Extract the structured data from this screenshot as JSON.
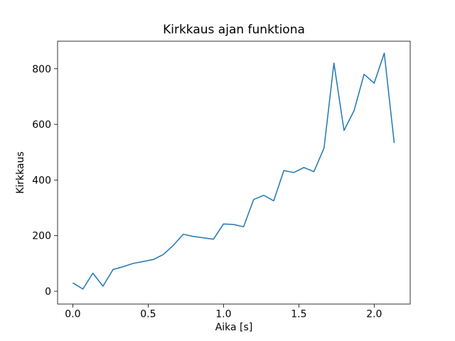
{
  "chart_data": {
    "type": "line",
    "title": "Kirkkaus ajan funktiona",
    "xlabel": "Aika [s]",
    "ylabel": "Kirkkaus",
    "line_color": "#1f77b4",
    "axis_color": "#000000",
    "background_color": "#ffffff",
    "grid": false,
    "legend": "none",
    "xlim": [
      -0.101,
      2.239
    ],
    "ylim": [
      -46,
      899
    ],
    "xticks": {
      "values": [
        0.0,
        0.5,
        1.0,
        1.5,
        2.0
      ],
      "labels": [
        "0.0",
        "0.5",
        "1.0",
        "1.5",
        "2.0"
      ]
    },
    "yticks": {
      "values": [
        0,
        200,
        400,
        600,
        800
      ],
      "labels": [
        "0",
        "200",
        "400",
        "600",
        "800"
      ]
    },
    "x": [
      0.0,
      0.067,
      0.133,
      0.2,
      0.267,
      0.333,
      0.4,
      0.467,
      0.533,
      0.6,
      0.667,
      0.733,
      0.8,
      0.867,
      0.933,
      1.0,
      1.067,
      1.133,
      1.2,
      1.267,
      1.333,
      1.4,
      1.467,
      1.533,
      1.6,
      1.667,
      1.733,
      1.8,
      1.867,
      1.933,
      2.0,
      2.067,
      2.133
    ],
    "y": [
      30,
      8,
      65,
      18,
      78,
      88,
      100,
      107,
      114,
      132,
      165,
      205,
      197,
      192,
      187,
      242,
      240,
      232,
      330,
      345,
      325,
      434,
      427,
      445,
      430,
      515,
      820,
      578,
      650,
      780,
      748,
      856,
      533
    ]
  }
}
